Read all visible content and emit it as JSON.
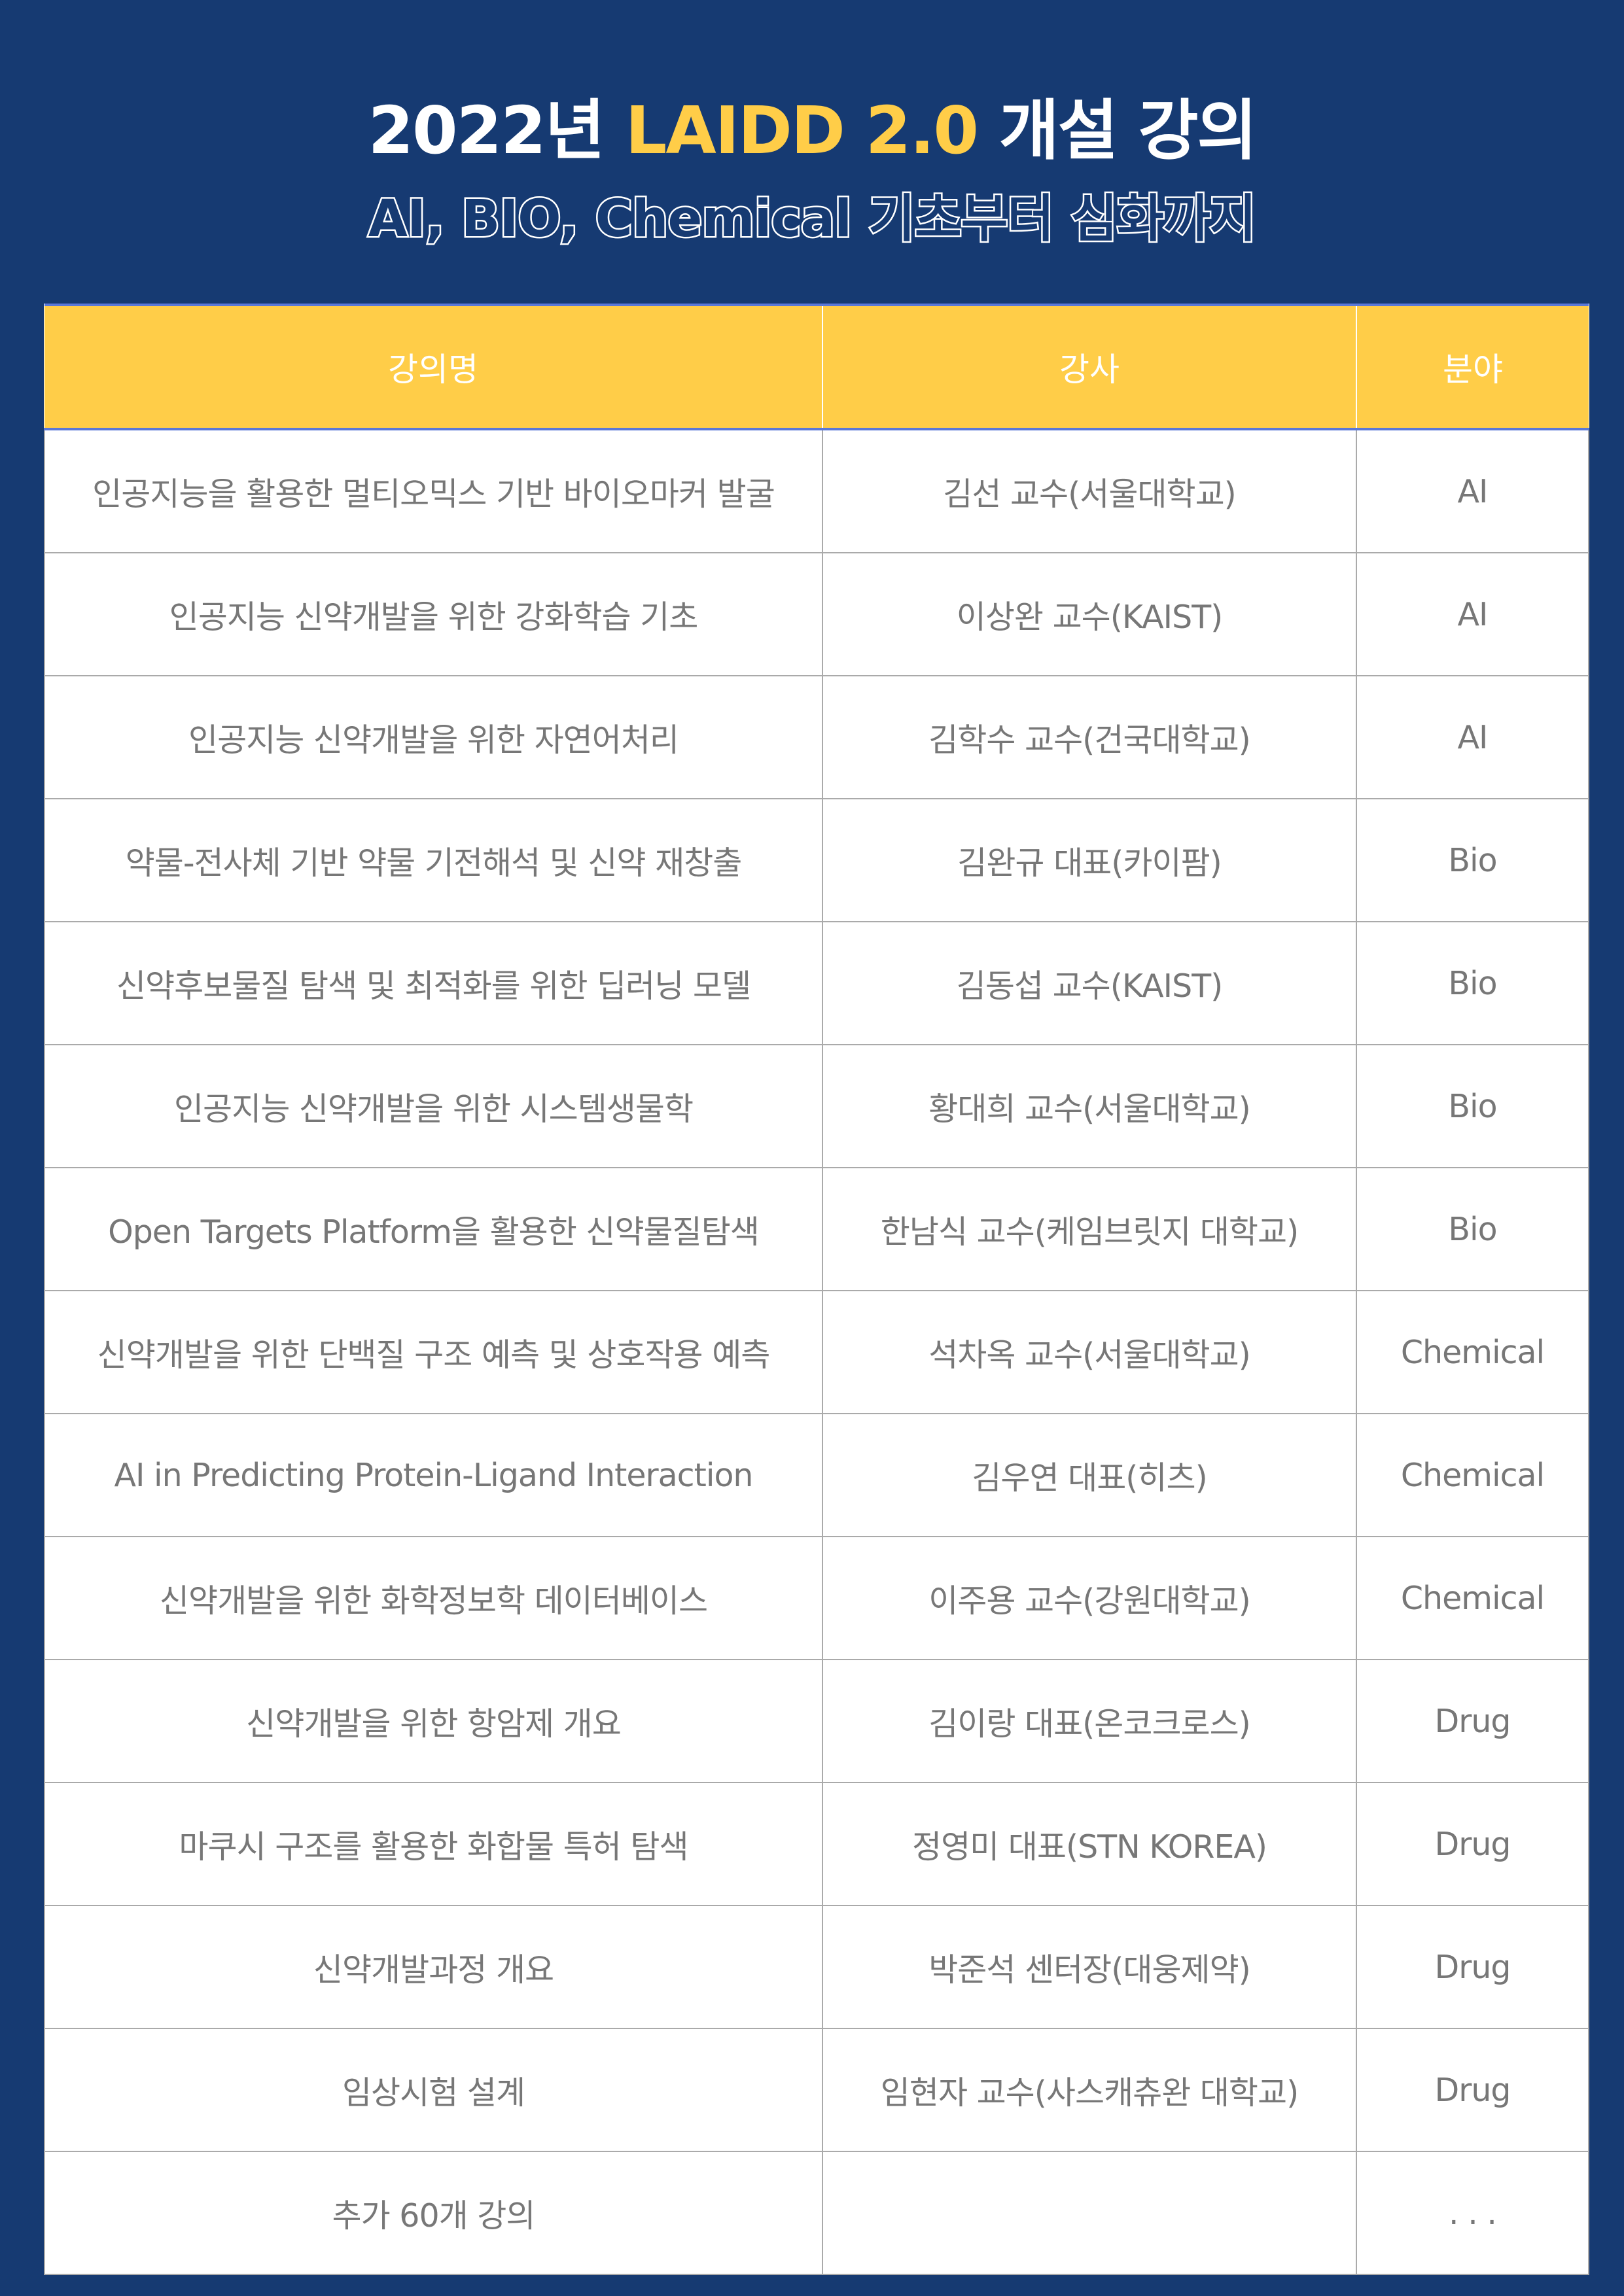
{
  "header": {
    "title_prefix": "2022년",
    "title_accent": "LAIDD 2.0",
    "title_suffix": "개설 강의",
    "subtitle": "AI, BIO, Chemical 기초부터 심화까지",
    "accent_color": "#ffcd48",
    "background_color": "#163a72"
  },
  "table": {
    "columns": [
      "강의명",
      "강사",
      "분야"
    ],
    "rows": [
      [
        "인공지능을 활용한 멀티오믹스 기반 바이오마커 발굴",
        "김선 교수(서울대학교)",
        "AI"
      ],
      [
        "인공지능 신약개발을 위한 강화학습 기초",
        "이상완 교수(KAIST)",
        "AI"
      ],
      [
        "인공지능 신약개발을 위한 자연어처리",
        "김학수 교수(건국대학교)",
        "AI"
      ],
      [
        "약물-전사체 기반 약물 기전해석 및 신약 재창출",
        "김완규 대표(카이팜)",
        "Bio"
      ],
      [
        "신약후보물질 탐색 및 최적화를 위한 딥러닝 모델",
        "김동섭 교수(KAIST)",
        "Bio"
      ],
      [
        "인공지능 신약개발을 위한 시스템생물학",
        "황대희 교수(서울대학교)",
        "Bio"
      ],
      [
        "Open Targets Platform을 활용한 신약물질탐색",
        "한남식 교수(케임브릿지 대학교)",
        "Bio"
      ],
      [
        "신약개발을 위한 단백질 구조 예측 및 상호작용 예측",
        "석차옥 교수(서울대학교)",
        "Chemical"
      ],
      [
        "AI in Predicting Protein-Ligand Interaction",
        "김우연 대표(히츠)",
        "Chemical"
      ],
      [
        "신약개발을 위한 화학정보학 데이터베이스",
        "이주용 교수(강원대학교)",
        "Chemical"
      ],
      [
        "신약개발을 위한 항암제 개요",
        "김이랑 대표(온코크로스)",
        "Drug"
      ],
      [
        "마쿠시 구조를 활용한 화합물 특허 탐색",
        "정영미 대표(STN KOREA)",
        "Drug"
      ],
      [
        "신약개발과정 개요",
        "박준석 센터장(대웅제약)",
        "Drug"
      ],
      [
        "임상시험 설계",
        "임현자 교수(사스캐츄완 대학교)",
        "Drug"
      ],
      [
        "추가 60개 강의",
        "",
        ". . ."
      ]
    ]
  }
}
